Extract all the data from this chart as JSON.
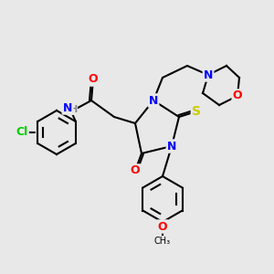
{
  "background_color": "#e8e8e8",
  "bond_color": "#000000",
  "atom_colors": {
    "N": "#0000ff",
    "O": "#ff0000",
    "S": "#cccc00",
    "Cl": "#00cc00",
    "H": "#808080",
    "C": "#000000"
  },
  "title": "",
  "figsize": [
    3.0,
    3.0
  ],
  "dpi": 100
}
